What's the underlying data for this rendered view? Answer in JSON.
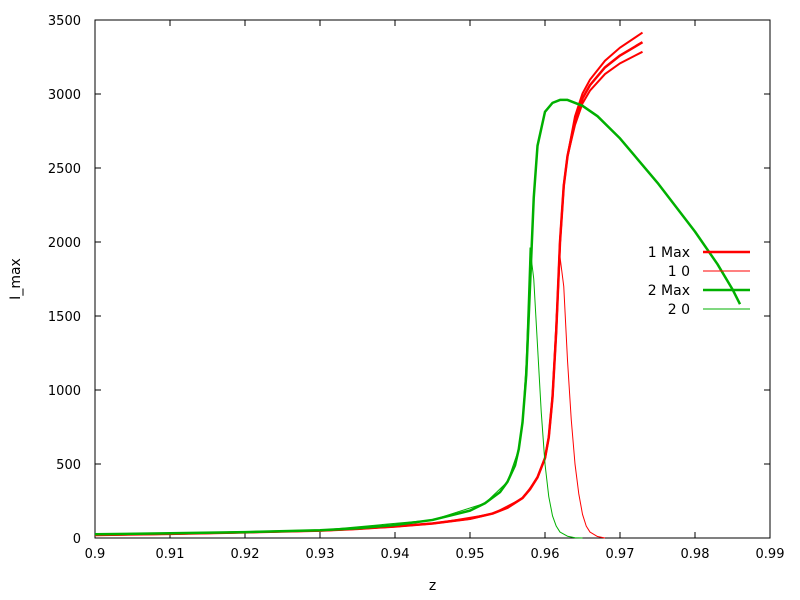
{
  "chart_data": {
    "type": "line",
    "xlabel": "z",
    "ylabel": "I_max",
    "xlim": [
      0.9,
      0.99
    ],
    "ylim": [
      0,
      3500
    ],
    "grid": false,
    "legend_position": "right",
    "xticks": [
      "0.9",
      "0.91",
      "0.92",
      "0.93",
      "0.94",
      "0.95",
      "0.96",
      "0.97",
      "0.98",
      "0.99"
    ],
    "yticks": [
      "0",
      "500",
      "1000",
      "1500",
      "2000",
      "2500",
      "3000",
      "3500"
    ],
    "series": [
      {
        "name": "1 Max",
        "color": "#ff0000",
        "width": "thick",
        "band": true,
        "x": [
          0.9,
          0.91,
          0.92,
          0.93,
          0.935,
          0.94,
          0.945,
          0.95,
          0.953,
          0.955,
          0.957,
          0.958,
          0.959,
          0.96,
          0.9605,
          0.961,
          0.9615,
          0.962,
          0.9625,
          0.963,
          0.964,
          0.965,
          0.966,
          0.968,
          0.97,
          0.972,
          0.973
        ],
        "y": [
          20,
          28,
          38,
          50,
          62,
          78,
          98,
          130,
          165,
          205,
          270,
          330,
          410,
          540,
          680,
          950,
          1400,
          2000,
          2380,
          2580,
          2820,
          2970,
          3060,
          3180,
          3260,
          3320,
          3350
        ]
      },
      {
        "name": "1 0",
        "color": "#ff0000",
        "width": "thin",
        "x": [
          0.9,
          0.93,
          0.945,
          0.953,
          0.957,
          0.959,
          0.96,
          0.9605,
          0.961,
          0.9615,
          0.962,
          0.9625,
          0.963,
          0.9635,
          0.964,
          0.9645,
          0.965,
          0.9655,
          0.966,
          0.967,
          0.968
        ],
        "y": [
          20,
          50,
          98,
          165,
          270,
          410,
          540,
          700,
          1000,
          1500,
          1900,
          1700,
          1200,
          800,
          500,
          300,
          160,
          80,
          40,
          10,
          0
        ]
      },
      {
        "name": "2 Max",
        "color": "#00b000",
        "width": "thick",
        "x": [
          0.9,
          0.91,
          0.92,
          0.93,
          0.935,
          0.94,
          0.945,
          0.95,
          0.952,
          0.954,
          0.955,
          0.956,
          0.9565,
          0.957,
          0.9575,
          0.958,
          0.9585,
          0.959,
          0.96,
          0.961,
          0.962,
          0.963,
          0.965,
          0.967,
          0.97,
          0.975,
          0.98,
          0.983,
          0.985,
          0.986
        ],
        "y": [
          25,
          32,
          40,
          52,
          66,
          88,
          122,
          185,
          235,
          310,
          380,
          490,
          600,
          780,
          1100,
          1700,
          2300,
          2650,
          2880,
          2940,
          2960,
          2960,
          2920,
          2850,
          2700,
          2400,
          2070,
          1850,
          1680,
          1580
        ]
      },
      {
        "name": "2 0",
        "color": "#00b000",
        "width": "thin",
        "x": [
          0.9,
          0.93,
          0.945,
          0.952,
          0.955,
          0.9565,
          0.957,
          0.9575,
          0.958,
          0.9585,
          0.959,
          0.9595,
          0.96,
          0.9605,
          0.961,
          0.9615,
          0.962,
          0.963,
          0.964,
          0.965
        ],
        "y": [
          25,
          52,
          122,
          235,
          380,
          600,
          780,
          1200,
          1960,
          1750,
          1300,
          850,
          500,
          280,
          150,
          80,
          40,
          12,
          2,
          0
        ]
      }
    ]
  }
}
